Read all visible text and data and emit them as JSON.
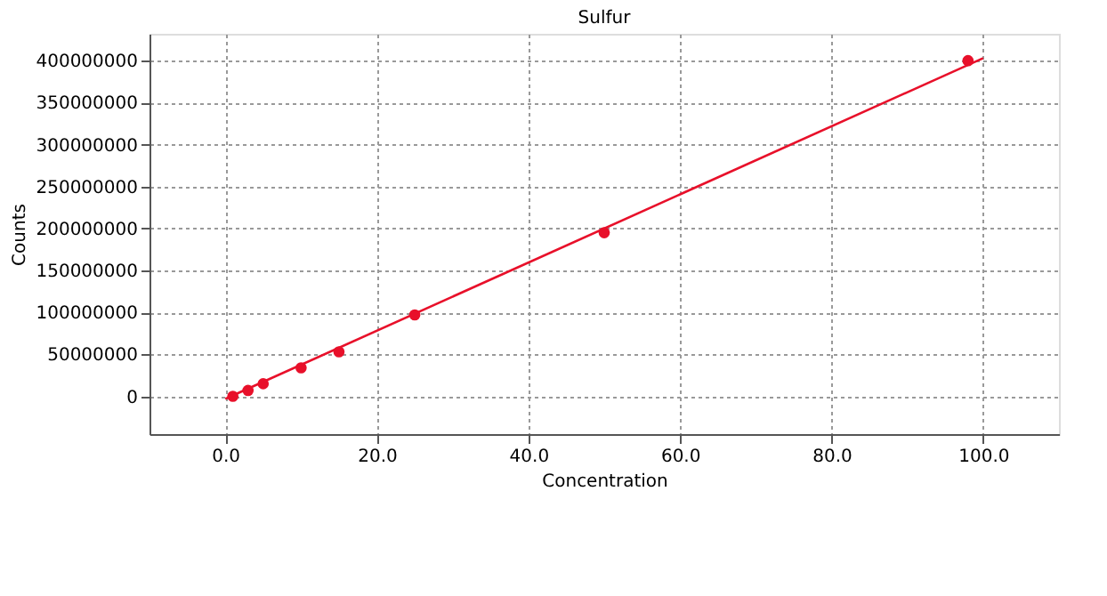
{
  "chart_data": {
    "type": "scatter",
    "title": "Sulfur",
    "xlabel": "Concentration",
    "ylabel": "Counts",
    "x": [
      1,
      3,
      5,
      10,
      15,
      25,
      50,
      98
    ],
    "series": [
      {
        "type": "scatter",
        "color": "#e8102a",
        "marker": "circle",
        "values": [
          0,
          7000000,
          15000000,
          34000000,
          53000000,
          97000000,
          195000000,
          400000000
        ]
      },
      {
        "type": "line",
        "color": "#e8102a",
        "marker": "none",
        "line_style": "solid",
        "x": [
          0,
          100
        ],
        "values": [
          -3000000,
          403000000
        ]
      }
    ],
    "xlim": [
      -10,
      110
    ],
    "ylim": [
      -45000000,
      432000000
    ],
    "xticks": [
      {
        "value": 0,
        "label": "0.0"
      },
      {
        "value": 20,
        "label": "20.0"
      },
      {
        "value": 40,
        "label": "40.0"
      },
      {
        "value": 60,
        "label": "60.0"
      },
      {
        "value": 80,
        "label": "80.0"
      },
      {
        "value": 100,
        "label": "100.0"
      }
    ],
    "yticks": [
      0,
      50000000,
      100000000,
      150000000,
      200000000,
      250000000,
      300000000,
      350000000,
      400000000
    ],
    "grid": true
  }
}
